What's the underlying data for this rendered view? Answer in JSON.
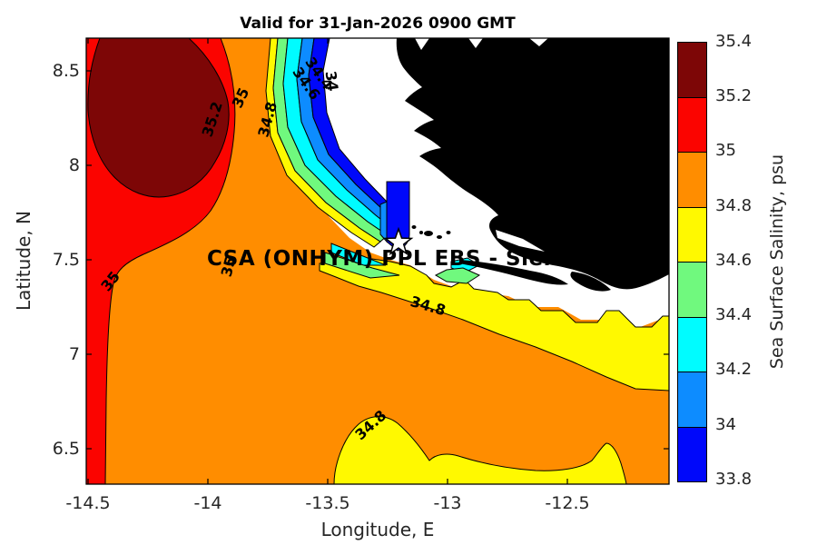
{
  "title": "Valid for 31-Jan-2026 0900 GMT",
  "overlay_label": "CSA (ONHYM) PPL EBS  - Sier",
  "axes": {
    "x_label": "Longitude, E",
    "y_label": "Latitude, N",
    "x_ticks": [
      "-14.5",
      "-14",
      "-13.5",
      "-13",
      "-12.5"
    ],
    "y_ticks": [
      "8.5",
      "8",
      "7.5",
      "7",
      "6.5"
    ]
  },
  "colorbar": {
    "label": "Sea Surface Salinity, psu",
    "ticks_top_to_bottom": [
      "35.4",
      "35.2",
      "35",
      "34.8",
      "34.6",
      "34.4",
      "34.2",
      "34",
      "33.8"
    ],
    "colors_top_to_bottom": [
      "#7d0606",
      "#fb0400",
      "#ff8d00",
      "#fff900",
      "#70f97e",
      "#00fcff",
      "#0d8cff",
      "#0008fa"
    ]
  },
  "contour_labels": [
    {
      "text": "35.2"
    },
    {
      "text": "35"
    },
    {
      "text": "34.8"
    },
    {
      "text": "34.6"
    },
    {
      "text": "34.4"
    },
    {
      "text": "34"
    },
    {
      "text": "35"
    },
    {
      "text": "35"
    },
    {
      "text": "34.8"
    },
    {
      "text": "34.8"
    }
  ],
  "map": {
    "land_color": "#000000",
    "masked_zone_color": "#ffffff",
    "star_marker": "white-star-outline-black"
  },
  "chart_data": {
    "type": "heatmap",
    "subtype": "filled-contour-map",
    "title": "Valid for 31-Jan-2026 0900 GMT",
    "xlabel": "Longitude, E",
    "ylabel": "Latitude, N",
    "xlim": [
      -14.55,
      -12.05
    ],
    "ylim": [
      6.31,
      8.67
    ],
    "x_ticks": [
      -14.5,
      -14,
      -13.5,
      -13,
      -12.5
    ],
    "y_ticks": [
      8.5,
      8,
      7.5,
      7,
      6.5
    ],
    "colorbar_label": "Sea Surface Salinity, psu",
    "levels_psu": [
      33.8,
      34,
      34.2,
      34.4,
      34.6,
      34.8,
      35,
      35.2,
      35.4
    ],
    "level_colors_low_to_high": [
      "#0008fa",
      "#0d8cff",
      "#00fcff",
      "#70f97e",
      "#fff900",
      "#ff8d00",
      "#fb0400",
      "#7d0606"
    ],
    "contour_line_labels_psu": [
      35.2,
      35,
      34.8,
      34.6,
      34.4,
      34,
      35,
      35,
      34.8,
      34.8
    ],
    "star_marker_lonlat": [
      -13.2,
      7.59
    ],
    "features": {
      "salinity_maximum": "35.2-35.4 psu pool centered near lon -14.15, lat 8.2 (upper left)",
      "salinity_minimum": "33.8-34 psu patch near lon -13.2, lat 7.75 (near star)",
      "dominant_field": "34.8-35 psu (orange) over most of the open ocean",
      "coastal_band": "34.6-34.8 psu (yellow) band along the coast and lower boundary",
      "land": "black landmass in the northeast quadrant",
      "masked_nearshore_zone": "white (no data) buffer between ocean field and land"
    }
  }
}
